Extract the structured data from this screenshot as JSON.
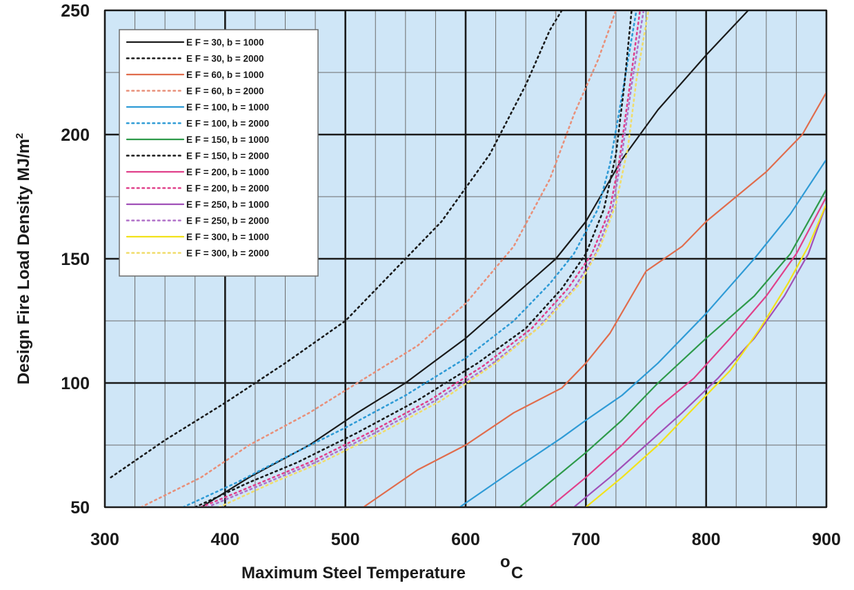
{
  "chart_data": {
    "type": "line",
    "title": "",
    "xlabel": "Maximum Steel Temperature",
    "xlabel_unit": "C",
    "xlabel_unit_sup": "o",
    "ylabel": "Design Fire Load Density MJ/m",
    "ylabel_sup": "2",
    "xlim": [
      300,
      900
    ],
    "ylim": [
      50,
      250
    ],
    "xticks": [
      "300",
      "400",
      "500",
      "600",
      "700",
      "800",
      "900"
    ],
    "yticks": [
      "50",
      "100",
      "150",
      "200",
      "250"
    ],
    "grid": true,
    "legend_position": "top-left",
    "colors": {
      "plot_background": "#cfe6f7",
      "major_grid": "#1a1a1a",
      "minor_grid": "#6b6b6b"
    },
    "series": [
      {
        "name": "E F = 30,   b = 1000",
        "color": "#1a1a1a",
        "dash": "solid",
        "points": [
          [
            380,
            50
          ],
          [
            420,
            62
          ],
          [
            470,
            75
          ],
          [
            510,
            88
          ],
          [
            550,
            100
          ],
          [
            600,
            118
          ],
          [
            640,
            135
          ],
          [
            675,
            150
          ],
          [
            700,
            165
          ],
          [
            730,
            190
          ],
          [
            760,
            210
          ],
          [
            800,
            232
          ],
          [
            835,
            250
          ]
        ]
      },
      {
        "name": "E F = 30,   b = 2000",
        "color": "#1a1a1a",
        "dash": "dotted",
        "points": [
          [
            305,
            62
          ],
          [
            350,
            77
          ],
          [
            400,
            92
          ],
          [
            450,
            108
          ],
          [
            500,
            125
          ],
          [
            540,
            145
          ],
          [
            580,
            165
          ],
          [
            620,
            192
          ],
          [
            650,
            220
          ],
          [
            670,
            242
          ],
          [
            680,
            250
          ]
        ]
      },
      {
        "name": "E F = 60,   b = 1000",
        "color": "#e06c4c",
        "dash": "solid",
        "points": [
          [
            515,
            50
          ],
          [
            560,
            65
          ],
          [
            600,
            75
          ],
          [
            640,
            88
          ],
          [
            680,
            98
          ],
          [
            700,
            108
          ],
          [
            720,
            120
          ],
          [
            750,
            145
          ],
          [
            780,
            155
          ],
          [
            800,
            165
          ],
          [
            850,
            185
          ],
          [
            880,
            200
          ],
          [
            900,
            217
          ]
        ]
      },
      {
        "name": "E F = 60,   b = 2000",
        "color": "#e8907a",
        "dash": "dotted",
        "points": [
          [
            330,
            50
          ],
          [
            380,
            62
          ],
          [
            420,
            75
          ],
          [
            470,
            88
          ],
          [
            510,
            100
          ],
          [
            560,
            115
          ],
          [
            600,
            132
          ],
          [
            640,
            155
          ],
          [
            670,
            182
          ],
          [
            690,
            208
          ],
          [
            710,
            230
          ],
          [
            725,
            250
          ]
        ]
      },
      {
        "name": "E F = 100, b = 1000",
        "color": "#2f9bd6",
        "dash": "solid",
        "points": [
          [
            595,
            50
          ],
          [
            640,
            65
          ],
          [
            680,
            78
          ],
          [
            700,
            85
          ],
          [
            730,
            95
          ],
          [
            760,
            108
          ],
          [
            800,
            128
          ],
          [
            840,
            150
          ],
          [
            870,
            168
          ],
          [
            900,
            190
          ]
        ]
      },
      {
        "name": "E F = 100, b = 2000",
        "color": "#2f9bd6",
        "dash": "dotted",
        "points": [
          [
            365,
            50
          ],
          [
            410,
            60
          ],
          [
            450,
            70
          ],
          [
            500,
            82
          ],
          [
            550,
            95
          ],
          [
            600,
            110
          ],
          [
            640,
            125
          ],
          [
            670,
            140
          ],
          [
            690,
            152
          ],
          [
            710,
            170
          ],
          [
            720,
            188
          ],
          [
            728,
            210
          ],
          [
            735,
            230
          ],
          [
            742,
            250
          ]
        ]
      },
      {
        "name": "E F = 150, b = 1000",
        "color": "#2e9a4a",
        "dash": "solid",
        "points": [
          [
            645,
            50
          ],
          [
            670,
            60
          ],
          [
            700,
            72
          ],
          [
            730,
            85
          ],
          [
            760,
            100
          ],
          [
            800,
            118
          ],
          [
            840,
            135
          ],
          [
            870,
            152
          ],
          [
            900,
            178
          ]
        ]
      },
      {
        "name": "E F = 150, b = 2000",
        "color": "#1a1a1a",
        "dash": "dotted",
        "points": [
          [
            375,
            50
          ],
          [
            420,
            60
          ],
          [
            460,
            68
          ],
          [
            510,
            80
          ],
          [
            560,
            93
          ],
          [
            610,
            108
          ],
          [
            650,
            122
          ],
          [
            680,
            138
          ],
          [
            700,
            152
          ],
          [
            715,
            170
          ],
          [
            725,
            192
          ],
          [
            732,
            220
          ],
          [
            738,
            250
          ]
        ]
      },
      {
        "name": "E F = 200, b = 1000",
        "color": "#e0408a",
        "dash": "solid",
        "points": [
          [
            670,
            50
          ],
          [
            700,
            62
          ],
          [
            730,
            75
          ],
          [
            760,
            90
          ],
          [
            790,
            102
          ],
          [
            820,
            118
          ],
          [
            850,
            135
          ],
          [
            875,
            152
          ],
          [
            900,
            175
          ]
        ]
      },
      {
        "name": "E F = 200, b = 2000",
        "color": "#e0408a",
        "dash": "dotted",
        "points": [
          [
            380,
            50
          ],
          [
            430,
            60
          ],
          [
            470,
            68
          ],
          [
            520,
            80
          ],
          [
            570,
            93
          ],
          [
            615,
            107
          ],
          [
            655,
            122
          ],
          [
            685,
            138
          ],
          [
            705,
            152
          ],
          [
            720,
            170
          ],
          [
            728,
            190
          ],
          [
            736,
            218
          ],
          [
            745,
            250
          ]
        ]
      },
      {
        "name": "E F = 250, b = 1000",
        "color": "#a050b8",
        "dash": "solid",
        "points": [
          [
            690,
            50
          ],
          [
            720,
            62
          ],
          [
            750,
            75
          ],
          [
            780,
            88
          ],
          [
            810,
            102
          ],
          [
            840,
            118
          ],
          [
            865,
            135
          ],
          [
            885,
            152
          ],
          [
            900,
            172
          ]
        ]
      },
      {
        "name": "E F = 250, b = 2000",
        "color": "#b070c8",
        "dash": "dotted",
        "points": [
          [
            385,
            50
          ],
          [
            435,
            60
          ],
          [
            475,
            68
          ],
          [
            525,
            80
          ],
          [
            575,
            93
          ],
          [
            620,
            107
          ],
          [
            660,
            122
          ],
          [
            690,
            138
          ],
          [
            708,
            152
          ],
          [
            722,
            170
          ],
          [
            730,
            192
          ],
          [
            738,
            220
          ],
          [
            748,
            250
          ]
        ]
      },
      {
        "name": "E F = 300, b = 1000",
        "color": "#f2e21a",
        "dash": "solid",
        "points": [
          [
            700,
            50
          ],
          [
            730,
            62
          ],
          [
            760,
            75
          ],
          [
            790,
            90
          ],
          [
            820,
            105
          ],
          [
            845,
            122
          ],
          [
            868,
            140
          ],
          [
            885,
            155
          ],
          [
            900,
            172
          ]
        ]
      },
      {
        "name": "E F = 300, b = 2000",
        "color": "#f0dc6a",
        "dash": "dotted",
        "points": [
          [
            395,
            50
          ],
          [
            440,
            60
          ],
          [
            480,
            68
          ],
          [
            530,
            80
          ],
          [
            580,
            93
          ],
          [
            625,
            108
          ],
          [
            665,
            124
          ],
          [
            695,
            140
          ],
          [
            712,
            155
          ],
          [
            725,
            172
          ],
          [
            735,
            195
          ],
          [
            742,
            222
          ],
          [
            752,
            250
          ]
        ]
      }
    ]
  }
}
